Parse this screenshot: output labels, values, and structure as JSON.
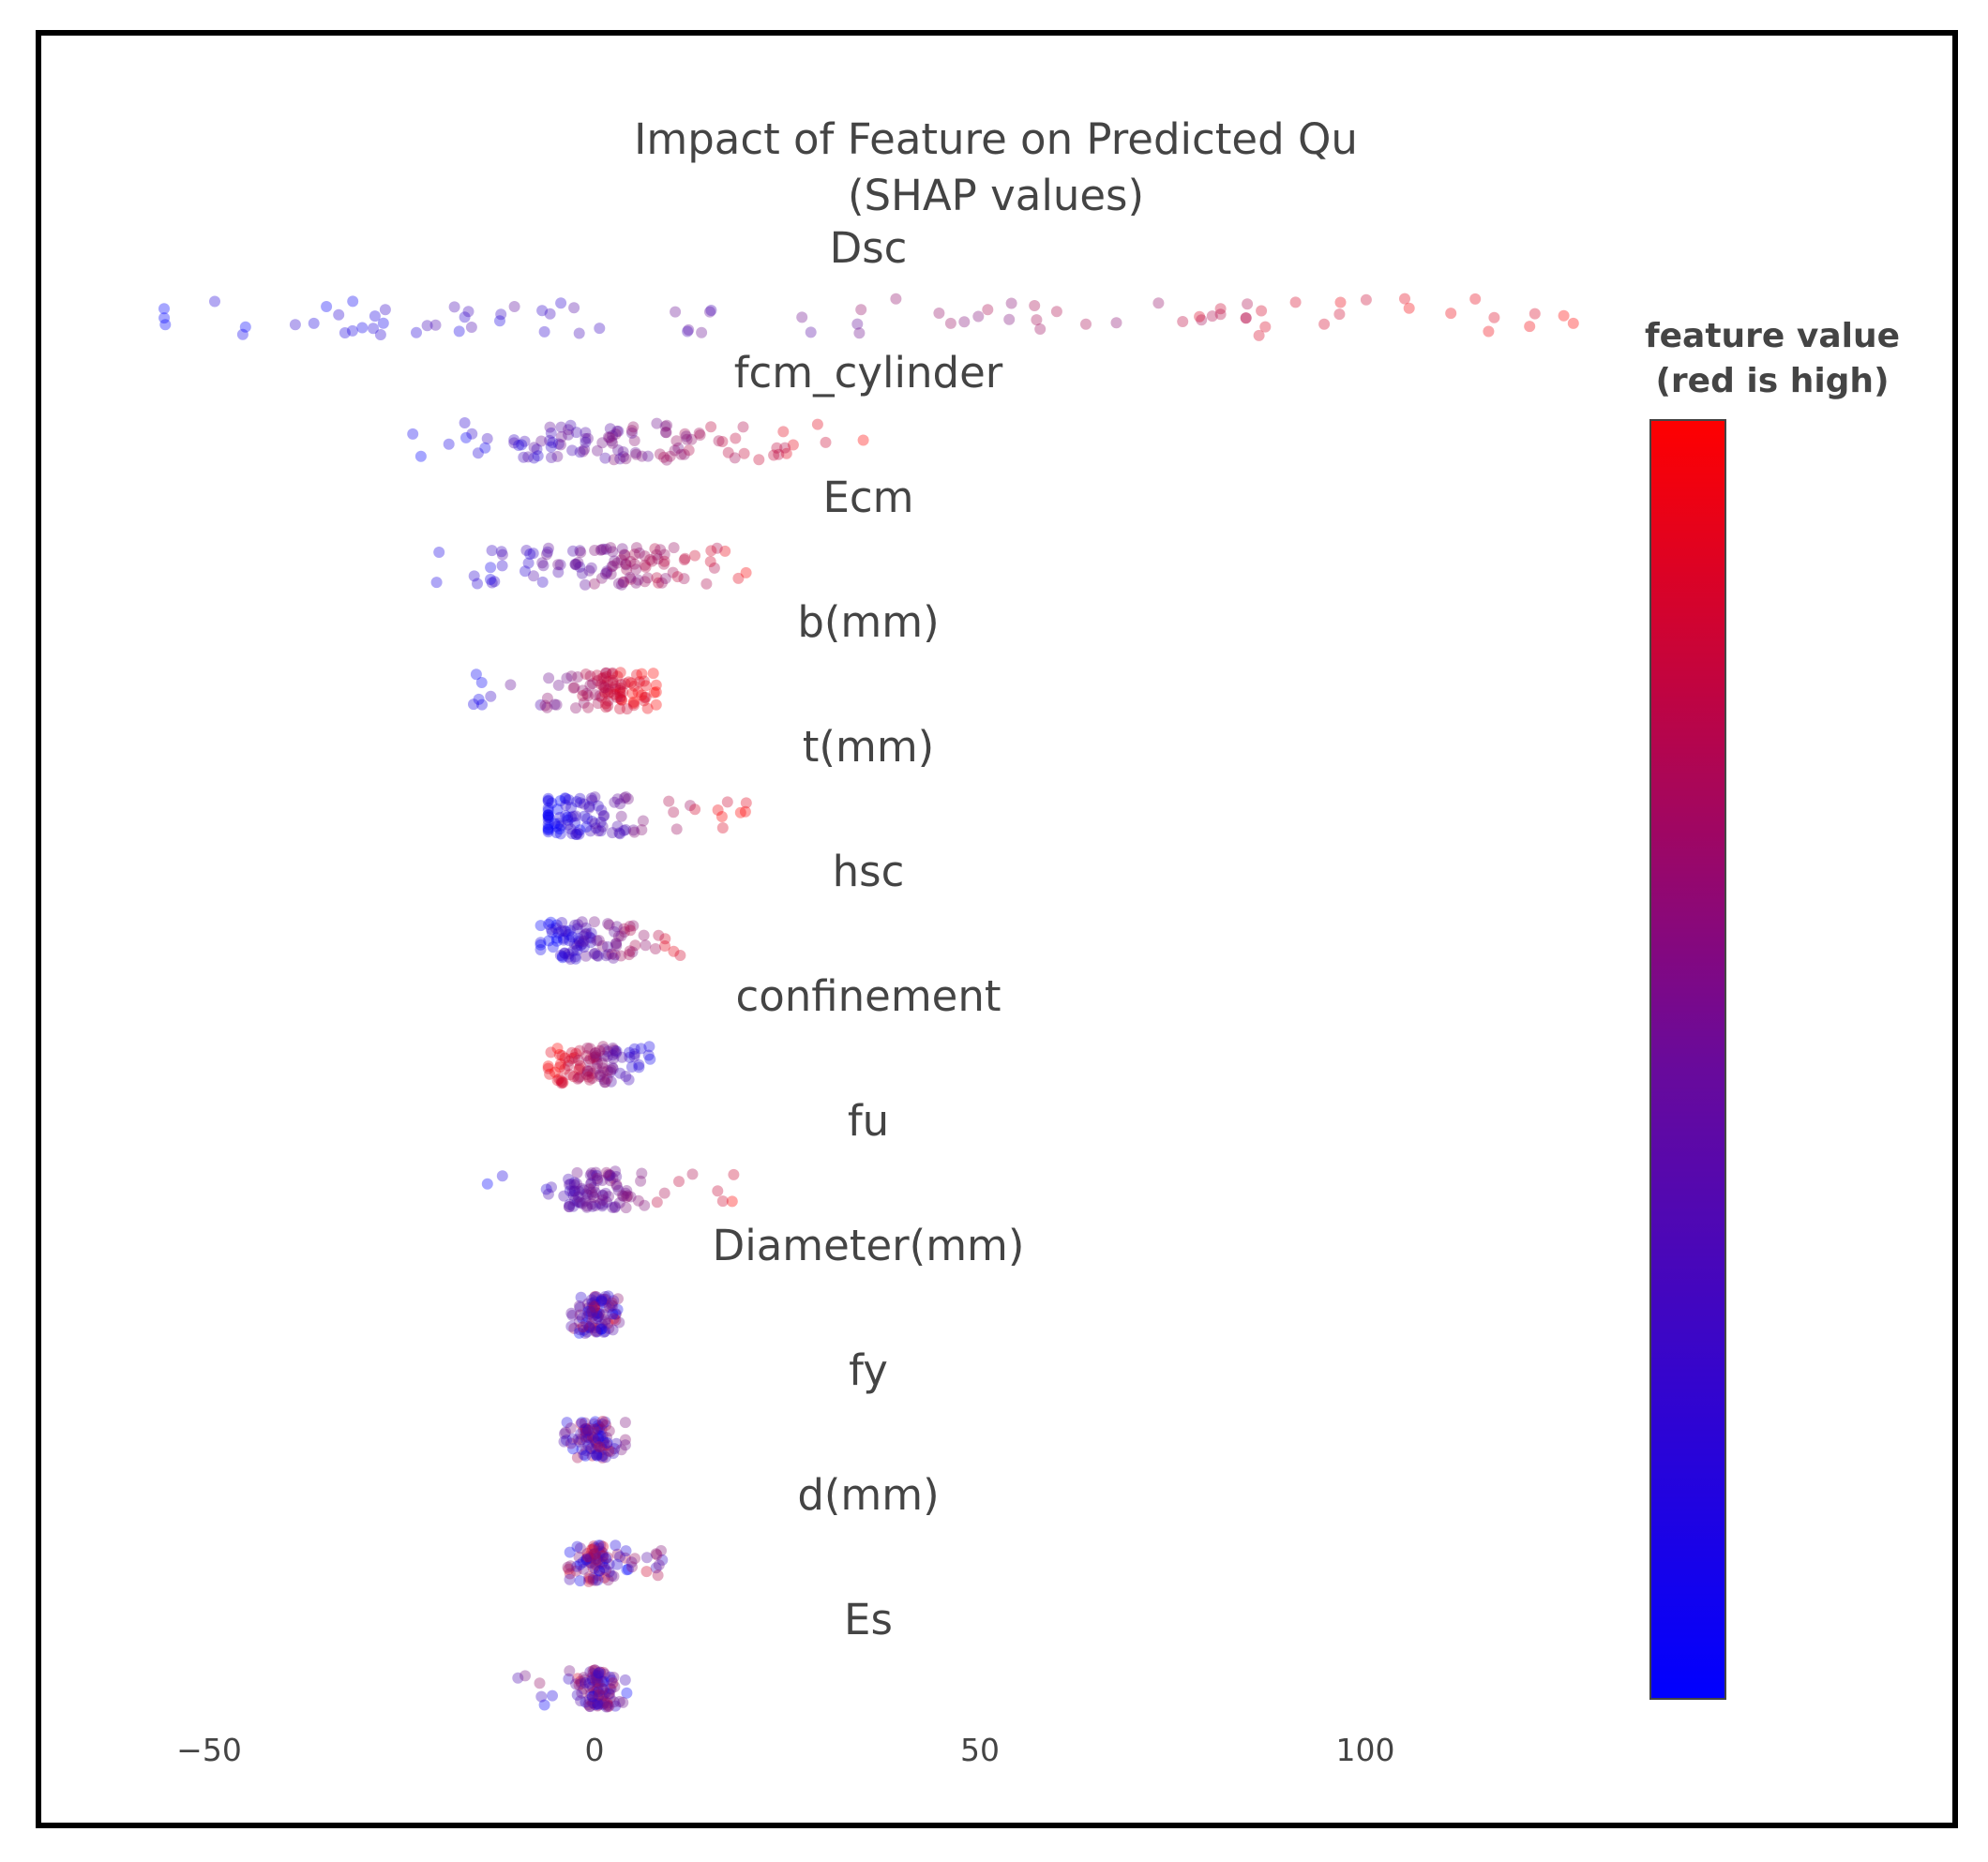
{
  "chart_data": {
    "type": "scatter",
    "title": "Impact of Feature on Predicted Qu",
    "subtitle": "(SHAP values)",
    "xlabel": "",
    "ylabel": "",
    "xlim": [
      -56,
      130
    ],
    "x_ticks": [
      -50,
      0,
      50,
      100
    ],
    "x_tick_labels": [
      "−50",
      "0",
      "50",
      "100"
    ],
    "grid": false,
    "colorbar": {
      "title_line1": "feature value",
      "title_line2": "(red is high)",
      "low_color": "#0000ff",
      "high_color": "#ff0000"
    },
    "features": [
      {
        "name": "Dsc",
        "spread": [
          -56,
          128
        ],
        "center": 0,
        "sd": 30,
        "count": 90,
        "color_trend": "low-left-high-right"
      },
      {
        "name": "fcm_cylinder",
        "spread": [
          -24,
          36
        ],
        "center": 2,
        "sd": 9,
        "count": 110,
        "color_trend": "low-left-high-right"
      },
      {
        "name": "Ecm",
        "spread": [
          -22,
          26
        ],
        "center": 1,
        "sd": 8,
        "count": 110,
        "color_trend": "low-left-high-right"
      },
      {
        "name": "b(mm)",
        "spread": [
          -18,
          8
        ],
        "center": 2,
        "sd": 3,
        "count": 100,
        "color_trend": "low-left-high-right"
      },
      {
        "name": "t(mm)",
        "spread": [
          -6,
          20
        ],
        "center": -2,
        "sd": 4,
        "count": 100,
        "color_trend": "low-left-high-right"
      },
      {
        "name": "hsc",
        "spread": [
          -7,
          13
        ],
        "center": -1,
        "sd": 3.5,
        "count": 100,
        "color_trend": "low-left-high-right"
      },
      {
        "name": "confinement",
        "spread": [
          -6,
          8
        ],
        "center": 0,
        "sd": 3,
        "count": 100,
        "color_trend": "high-left-low-right"
      },
      {
        "name": "fu",
        "spread": [
          -14,
          21
        ],
        "center": 0,
        "sd": 2.5,
        "count": 100,
        "color_trend": "low-left-high-right"
      },
      {
        "name": "Diameter(mm)",
        "spread": [
          -3,
          4
        ],
        "center": 0,
        "sd": 1.5,
        "count": 90,
        "color_trend": "mixed"
      },
      {
        "name": "fy",
        "spread": [
          -4,
          4
        ],
        "center": 0,
        "sd": 1.5,
        "count": 90,
        "color_trend": "mixed"
      },
      {
        "name": "d(mm)",
        "spread": [
          -4,
          9
        ],
        "center": 0,
        "sd": 1.5,
        "count": 90,
        "color_trend": "mixed"
      },
      {
        "name": "Es",
        "spread": [
          -10,
          5
        ],
        "center": 0,
        "sd": 1.2,
        "count": 100,
        "color_trend": "mixed"
      }
    ]
  }
}
